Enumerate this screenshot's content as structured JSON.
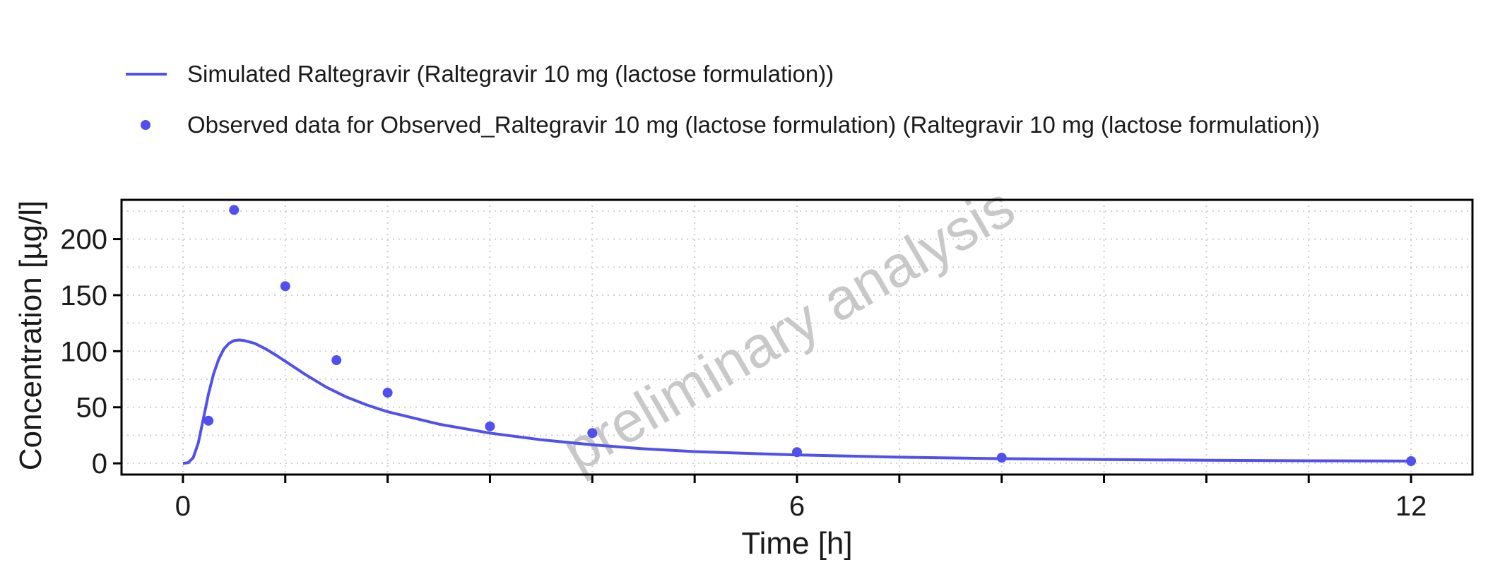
{
  "legend": {
    "items": [
      {
        "label": "Simulated Raltegravir (Raltegravir 10 mg (lactose formulation))",
        "kind": "line"
      },
      {
        "label": "Observed data for Observed_Raltegravir 10 mg (lactose formulation) (Raltegravir 10 mg (lactose formulation))",
        "kind": "point"
      }
    ]
  },
  "watermark": "preliminary analysis",
  "chart_data": {
    "type": "line",
    "xlabel": "Time [h]",
    "ylabel": "Concentration [µg/l]",
    "xlim": [
      -0.6,
      12.6
    ],
    "ylim": [
      -10,
      235
    ],
    "x_ticks": [
      0,
      6,
      12
    ],
    "x_minor_ticks": [
      1,
      2,
      3,
      4,
      5,
      7,
      8,
      9,
      10,
      11
    ],
    "y_ticks": [
      0,
      50,
      100,
      150,
      200
    ],
    "grid": true,
    "legend_position": "top",
    "color": "#5050F0",
    "series": [
      {
        "name": "Simulated Raltegravir (Raltegravir 10 mg (lactose formulation))",
        "type": "line",
        "x": [
          0,
          0.05,
          0.1,
          0.15,
          0.2,
          0.25,
          0.3,
          0.35,
          0.4,
          0.45,
          0.5,
          0.55,
          0.6,
          0.7,
          0.8,
          0.9,
          1.0,
          1.2,
          1.4,
          1.6,
          1.8,
          2.0,
          2.5,
          3.0,
          3.5,
          4.0,
          4.5,
          5.0,
          6.0,
          7.0,
          8.0,
          9.0,
          10.0,
          11.0,
          12.0
        ],
        "y": [
          0,
          0.5,
          5,
          18,
          40,
          62,
          80,
          93,
          102,
          107,
          109.5,
          110,
          109.5,
          107,
          102.5,
          97,
          91,
          79,
          68,
          59,
          52,
          46,
          35,
          27,
          21,
          16.5,
          13,
          10.5,
          7.5,
          5.5,
          4.2,
          3.4,
          2.8,
          2.3,
          2.0
        ]
      },
      {
        "name": "Observed data for Observed_Raltegravir 10 mg (lactose formulation) (Raltegravir 10 mg (lactose formulation))",
        "type": "scatter",
        "x": [
          0.25,
          0.5,
          1.0,
          1.5,
          2.0,
          3.0,
          4.0,
          6.0,
          8.0,
          12.0
        ],
        "y": [
          38,
          226,
          158,
          92,
          63,
          33,
          27,
          10,
          5,
          2
        ]
      }
    ]
  }
}
